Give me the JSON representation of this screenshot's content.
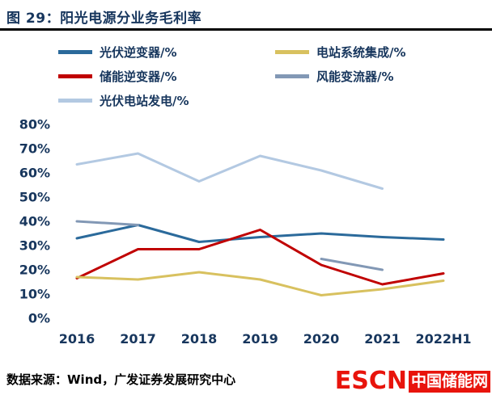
{
  "header": {
    "title": "图 29：阳光电源分业务毛利率"
  },
  "footer": {
    "source": "数据来源：Wind，广发证券发展研究中心",
    "logo_en": "ESCN",
    "logo_cn": "中国储能网"
  },
  "chart_data": {
    "type": "line",
    "title": "阳光电源分业务毛利率",
    "categories": [
      "2016",
      "2017",
      "2018",
      "2019",
      "2020",
      "2021",
      "2022H1"
    ],
    "series": [
      {
        "key": "pv-inverter",
        "name": "光伏逆变器/%",
        "color": "#2B6A9B",
        "values": [
          33,
          38.5,
          31.5,
          33.5,
          35,
          33.5,
          32.5
        ]
      },
      {
        "key": "storage-inverter",
        "name": "储能逆变器/%",
        "color": "#C00000",
        "values": [
          16.5,
          28.5,
          28.5,
          36.5,
          22,
          14,
          18.5
        ]
      },
      {
        "key": "pv-station-power",
        "name": "光伏电站发电/%",
        "color": "#B3C9E2",
        "values": [
          63.5,
          68,
          56.5,
          67,
          61,
          53.5,
          null
        ]
      },
      {
        "key": "station-integration",
        "name": "电站系统集成/%",
        "color": "#D8C15F",
        "values": [
          17,
          16,
          19,
          16,
          9.5,
          12,
          15.5
        ]
      },
      {
        "key": "wind-converter",
        "name": "风能变流器/%",
        "color": "#8298B5",
        "values": [
          40,
          38.5,
          null,
          null,
          24.5,
          20,
          null
        ]
      }
    ],
    "legend_order": [
      0,
      3,
      1,
      4,
      2
    ],
    "legend_position": "top",
    "grid": false,
    "ylim": [
      0,
      80
    ],
    "ytick_step": 10,
    "yticks": [
      "0%",
      "10%",
      "20%",
      "30%",
      "40%",
      "50%",
      "60%",
      "70%",
      "80%"
    ]
  }
}
